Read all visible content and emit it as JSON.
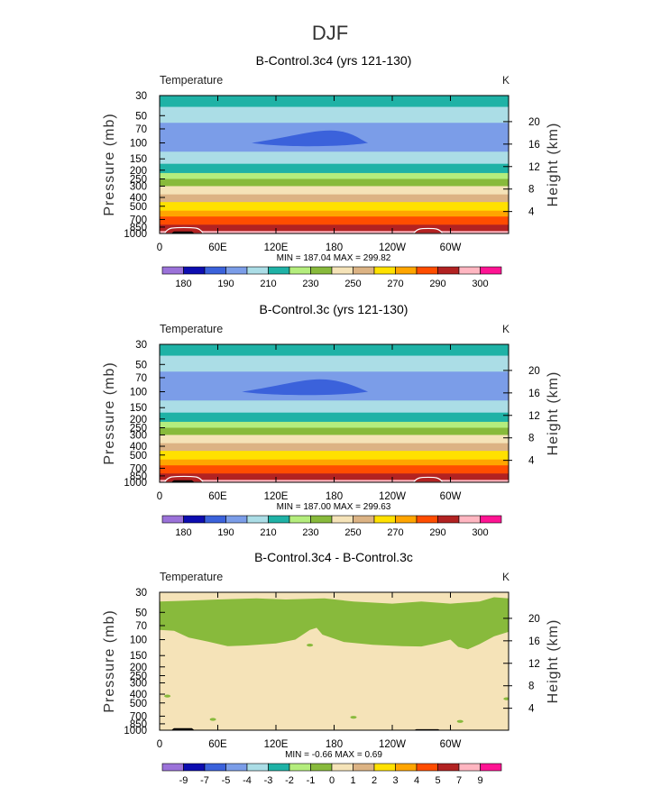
{
  "figure_title": "DJF",
  "colors": {
    "temperature_levels": [
      "#9b72d9",
      "#0d0db0",
      "#3b62db",
      "#7b9de8",
      "#abdde6",
      "#1fb2a6",
      "#b4ed7d",
      "#88ba3c",
      "#f5e3b8",
      "#dcb384",
      "#ffe100",
      "#ffa500",
      "#ff4d00",
      "#b22222",
      "#ffb6c1",
      "#ff1493"
    ],
    "difference_levels": [
      "#9b72d9",
      "#0d0db0",
      "#3b62db",
      "#7b9de8",
      "#abdde6",
      "#1fb2a6",
      "#b4ed7d",
      "#88ba3c",
      "#f5e3b8",
      "#dcb384",
      "#ffe100",
      "#ffa500",
      "#ff4d00",
      "#b22222",
      "#ffb6c1",
      "#ff1493"
    ]
  },
  "chart_data": [
    {
      "type": "heatmap",
      "title": "B-Control.3c4 (yrs 121-130)",
      "variable_label": "Temperature",
      "units_label": "K",
      "xlabel": "",
      "ylabel": "Pressure (mb)",
      "ylabel_right": "Height (km)",
      "x_ticks": [
        "0",
        "60E",
        "120E",
        "180",
        "120W",
        "60W"
      ],
      "x_tick_values": [
        0,
        60,
        120,
        180,
        240,
        300
      ],
      "xlim": [
        0,
        360
      ],
      "pressure_ticks": [
        "30",
        "50",
        "70",
        "100",
        "150",
        "200",
        "250",
        "300",
        "400",
        "500",
        "700",
        "850",
        "1000"
      ],
      "pressure_tick_values": [
        30,
        50,
        70,
        100,
        150,
        200,
        250,
        300,
        400,
        500,
        700,
        850,
        1000
      ],
      "ylim": [
        1000,
        30
      ],
      "height_ticks": [
        "4",
        "8",
        "12",
        "16",
        "20"
      ],
      "height_tick_values": [
        4,
        8,
        12,
        16,
        20
      ],
      "stats_text": "MIN = 187.04   MAX = 299.82",
      "min": 187.04,
      "max": 299.82,
      "bands": [
        {
          "p_top": 30,
          "p_bottom": 40,
          "level": 5
        },
        {
          "p_top": 40,
          "p_bottom": 60,
          "level": 4
        },
        {
          "p_top": 60,
          "p_bottom": 125,
          "level": 3
        },
        {
          "p_top": 125,
          "p_bottom": 170,
          "level": 4
        },
        {
          "p_top": 170,
          "p_bottom": 215,
          "level": 5
        },
        {
          "p_top": 215,
          "p_bottom": 250,
          "level": 6
        },
        {
          "p_top": 250,
          "p_bottom": 300,
          "level": 7
        },
        {
          "p_top": 300,
          "p_bottom": 370,
          "level": 8
        },
        {
          "p_top": 370,
          "p_bottom": 450,
          "level": 9
        },
        {
          "p_top": 450,
          "p_bottom": 560,
          "level": 10
        },
        {
          "p_top": 560,
          "p_bottom": 650,
          "level": 11
        },
        {
          "p_top": 650,
          "p_bottom": 800,
          "level": 12
        },
        {
          "p_top": 800,
          "p_bottom": 940,
          "level": 13
        },
        {
          "p_top": 940,
          "p_bottom": 1000,
          "level": 14
        }
      ],
      "features": [
        {
          "kind": "lens",
          "level": 2,
          "lon1": 95,
          "lon2": 215,
          "lon_peak": 175,
          "p_mid": 100,
          "p_top": 73,
          "p_bottom": 112
        },
        {
          "kind": "bump",
          "level": 13,
          "lon1": 5,
          "lon2": 45,
          "p_top": 860
        },
        {
          "kind": "bump",
          "level": 13,
          "lon1": 262,
          "lon2": 292,
          "p_top": 880
        },
        {
          "kind": "mountain",
          "level": -1,
          "lon1": 12,
          "lon2": 36,
          "p_top": 950
        }
      ],
      "colorbar": {
        "labels": [
          "180",
          "190",
          "210",
          "230",
          "250",
          "270",
          "290",
          "300"
        ],
        "label_boxes": [
          1,
          3,
          5,
          7,
          9,
          11,
          13,
          15
        ]
      }
    },
    {
      "type": "heatmap",
      "title": "B-Control.3c (yrs 121-130)",
      "variable_label": "Temperature",
      "units_label": "K",
      "xlabel": "",
      "ylabel": "Pressure (mb)",
      "ylabel_right": "Height (km)",
      "x_ticks": [
        "0",
        "60E",
        "120E",
        "180",
        "120W",
        "60W"
      ],
      "x_tick_values": [
        0,
        60,
        120,
        180,
        240,
        300
      ],
      "xlim": [
        0,
        360
      ],
      "pressure_ticks": [
        "30",
        "50",
        "70",
        "100",
        "150",
        "200",
        "250",
        "300",
        "400",
        "500",
        "700",
        "850",
        "1000"
      ],
      "pressure_tick_values": [
        30,
        50,
        70,
        100,
        150,
        200,
        250,
        300,
        400,
        500,
        700,
        850,
        1000
      ],
      "ylim": [
        1000,
        30
      ],
      "height_ticks": [
        "4",
        "8",
        "12",
        "16",
        "20"
      ],
      "height_tick_values": [
        4,
        8,
        12,
        16,
        20
      ],
      "stats_text": "MIN = 187.00   MAX = 299.63",
      "min": 187.0,
      "max": 299.63,
      "bands": [
        {
          "p_top": 30,
          "p_bottom": 40,
          "level": 5
        },
        {
          "p_top": 40,
          "p_bottom": 60,
          "level": 4
        },
        {
          "p_top": 60,
          "p_bottom": 125,
          "level": 3
        },
        {
          "p_top": 125,
          "p_bottom": 170,
          "level": 4
        },
        {
          "p_top": 170,
          "p_bottom": 215,
          "level": 5
        },
        {
          "p_top": 215,
          "p_bottom": 250,
          "level": 6
        },
        {
          "p_top": 250,
          "p_bottom": 300,
          "level": 7
        },
        {
          "p_top": 300,
          "p_bottom": 370,
          "level": 8
        },
        {
          "p_top": 370,
          "p_bottom": 450,
          "level": 9
        },
        {
          "p_top": 450,
          "p_bottom": 560,
          "level": 10
        },
        {
          "p_top": 560,
          "p_bottom": 650,
          "level": 11
        },
        {
          "p_top": 650,
          "p_bottom": 800,
          "level": 12
        },
        {
          "p_top": 800,
          "p_bottom": 940,
          "level": 13
        },
        {
          "p_top": 940,
          "p_bottom": 1000,
          "level": 14
        }
      ],
      "features": [
        {
          "kind": "lens",
          "level": 2,
          "lon1": 85,
          "lon2": 215,
          "lon_peak": 165,
          "p_mid": 100,
          "p_top": 73,
          "p_bottom": 112
        },
        {
          "kind": "bump",
          "level": 13,
          "lon1": 5,
          "lon2": 45,
          "p_top": 860
        },
        {
          "kind": "bump",
          "level": 13,
          "lon1": 262,
          "lon2": 292,
          "p_top": 880
        },
        {
          "kind": "mountain",
          "level": -1,
          "lon1": 12,
          "lon2": 36,
          "p_top": 950
        }
      ],
      "colorbar": {
        "labels": [
          "180",
          "190",
          "210",
          "230",
          "250",
          "270",
          "290",
          "300"
        ],
        "label_boxes": [
          1,
          3,
          5,
          7,
          9,
          11,
          13,
          15
        ]
      }
    },
    {
      "type": "heatmap",
      "title": "B-Control.3c4 - B-Control.3c",
      "variable_label": "Temperature",
      "units_label": "K",
      "xlabel": "",
      "ylabel": "Pressure (mb)",
      "ylabel_right": "Height (km)",
      "x_ticks": [
        "0",
        "60E",
        "120E",
        "180",
        "120W",
        "60W"
      ],
      "x_tick_values": [
        0,
        60,
        120,
        180,
        240,
        300
      ],
      "xlim": [
        0,
        360
      ],
      "pressure_ticks": [
        "30",
        "50",
        "70",
        "100",
        "150",
        "200",
        "250",
        "300",
        "400",
        "500",
        "700",
        "850",
        "1000"
      ],
      "pressure_tick_values": [
        30,
        50,
        70,
        100,
        150,
        200,
        250,
        300,
        400,
        500,
        700,
        850,
        1000
      ],
      "ylim": [
        1000,
        30
      ],
      "height_ticks": [
        "4",
        "8",
        "12",
        "16",
        "20"
      ],
      "height_tick_values": [
        4,
        8,
        12,
        16,
        20
      ],
      "stats_text": "MIN =  -0.66   MAX =   0.69",
      "min": -0.66,
      "max": 0.69,
      "background_level": 8,
      "negative_region": {
        "level": 7,
        "top_edge": [
          [
            0,
            38
          ],
          [
            30,
            37
          ],
          [
            60,
            36
          ],
          [
            100,
            35
          ],
          [
            130,
            36
          ],
          [
            170,
            35
          ],
          [
            200,
            38
          ],
          [
            240,
            40
          ],
          [
            270,
            38
          ],
          [
            300,
            40
          ],
          [
            330,
            38
          ],
          [
            345,
            34
          ],
          [
            360,
            35
          ]
        ],
        "bottom_edge": [
          [
            0,
            78
          ],
          [
            15,
            80
          ],
          [
            30,
            95
          ],
          [
            50,
            105
          ],
          [
            70,
            118
          ],
          [
            90,
            116
          ],
          [
            120,
            110
          ],
          [
            140,
            100
          ],
          [
            155,
            78
          ],
          [
            162,
            74
          ],
          [
            168,
            88
          ],
          [
            190,
            106
          ],
          [
            220,
            114
          ],
          [
            250,
            118
          ],
          [
            270,
            119
          ],
          [
            285,
            110
          ],
          [
            300,
            100
          ],
          [
            308,
            120
          ],
          [
            318,
            128
          ],
          [
            330,
            112
          ],
          [
            345,
            92
          ],
          [
            360,
            82
          ]
        ]
      },
      "specks": [
        {
          "lon": 55,
          "p": 760
        },
        {
          "lon": 8,
          "p": 420
        },
        {
          "lon": 155,
          "p": 115
        },
        {
          "lon": 310,
          "p": 800
        },
        {
          "lon": 200,
          "p": 720
        },
        {
          "lon": 358,
          "p": 450
        }
      ],
      "features": [
        {
          "kind": "mountain",
          "level": -1,
          "lon1": 12,
          "lon2": 36,
          "p_top": 950
        },
        {
          "kind": "mountain",
          "level": -1,
          "lon1": 262,
          "lon2": 290,
          "p_top": 975
        }
      ],
      "colorbar": {
        "labels": [
          "-9",
          "-7",
          "-5",
          "-4",
          "-3",
          "-2",
          "-1",
          "0",
          "1",
          "2",
          "3",
          "4",
          "5",
          "7",
          "9"
        ],
        "label_boxes": [
          1,
          2,
          3,
          4,
          5,
          6,
          7,
          8,
          9,
          10,
          11,
          12,
          13,
          14,
          15
        ]
      }
    }
  ]
}
